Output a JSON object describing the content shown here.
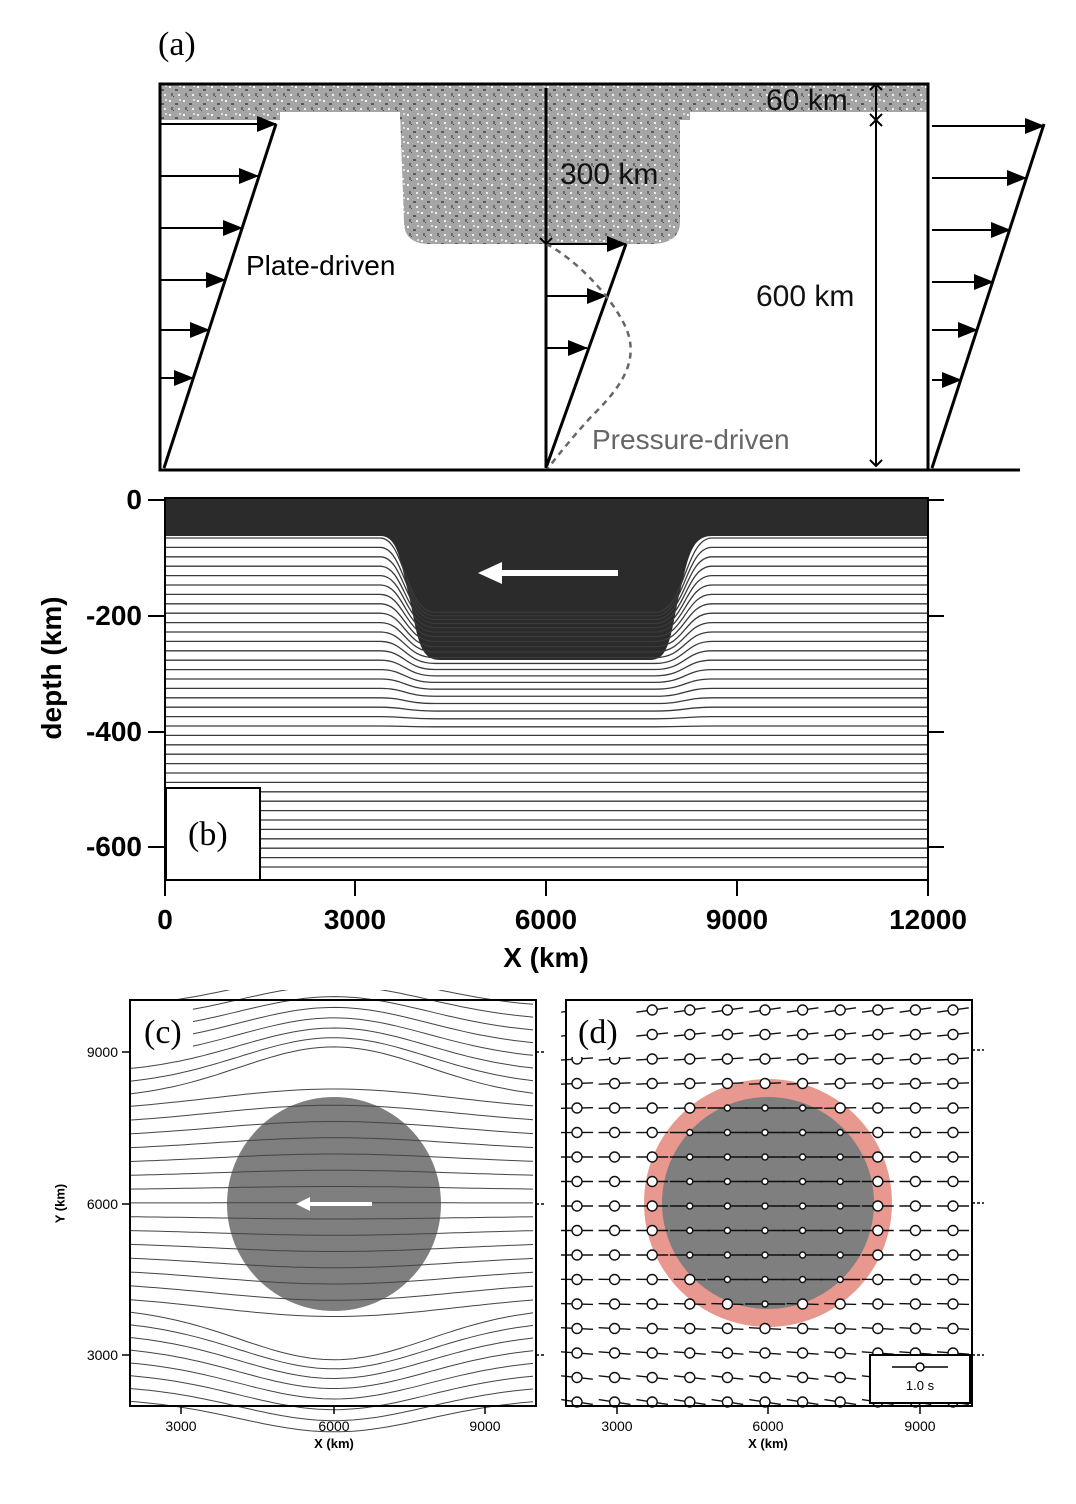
{
  "figure": {
    "panel_a": {
      "letter": "(a)",
      "labels": {
        "lid": "60 km",
        "root": "300 km",
        "mantle": "600 km",
        "plate": "Plate-driven",
        "pressure": "Pressure-driven"
      }
    },
    "panel_b": {
      "letter": "(b)",
      "xlabel": "X (km)",
      "ylabel": "depth (km)",
      "xticks": [
        "0",
        "3000",
        "6000",
        "9000",
        "12000"
      ],
      "yticks": [
        "0",
        "-200",
        "-400",
        "-600"
      ]
    },
    "panel_c": {
      "letter": "(c)",
      "xlabel": "X (km)",
      "ylabel": "Y (km)",
      "xticks": [
        "3000",
        "6000",
        "9000"
      ],
      "yticks": [
        "9000",
        "6000",
        "3000"
      ]
    },
    "panel_d": {
      "letter": "(d)",
      "xlabel": "X (km)",
      "xticks": [
        "3000",
        "6000",
        "9000"
      ],
      "scale_label": "1.0 s"
    },
    "colors": {
      "ink": "#000000",
      "dark_fill": "#2a2a2a",
      "keel_fill": "#7d7d7d",
      "highlight_ring": "#e8988f",
      "pressure_text": "#666666"
    }
  }
}
